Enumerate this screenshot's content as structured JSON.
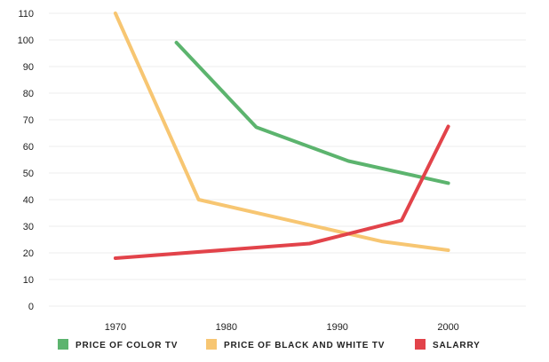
{
  "chart_data": {
    "type": "line",
    "xlim": [
      1964,
      2007
    ],
    "ylim": [
      0,
      110
    ],
    "x_ticks": [
      "1970",
      "1980",
      "1990",
      "2000"
    ],
    "y_ticks": [
      "0",
      "10",
      "20",
      "30",
      "40",
      "50",
      "60",
      "70",
      "80",
      "90",
      "100",
      "110"
    ],
    "grid": true,
    "legend_position": "bottom",
    "series": [
      {
        "name": "PRICE OF COLOR TV",
        "color": "#5cb46e",
        "points": [
          [
            1975.5,
            99
          ],
          [
            1982.7,
            67.2
          ],
          [
            1991,
            54.5
          ],
          [
            2000,
            46.2
          ]
        ]
      },
      {
        "name": "PRICE OF BLACK AND WHITE TV",
        "color": "#f7c672",
        "points": [
          [
            1970,
            110
          ],
          [
            1977.5,
            40
          ],
          [
            1994,
            24.3
          ],
          [
            2000,
            21
          ]
        ]
      },
      {
        "name": "SALARRY",
        "color": "#e2434a",
        "points": [
          [
            1970,
            18
          ],
          [
            1987.5,
            23.5
          ],
          [
            1995.8,
            32.2
          ],
          [
            2000,
            67.5
          ]
        ]
      }
    ]
  }
}
